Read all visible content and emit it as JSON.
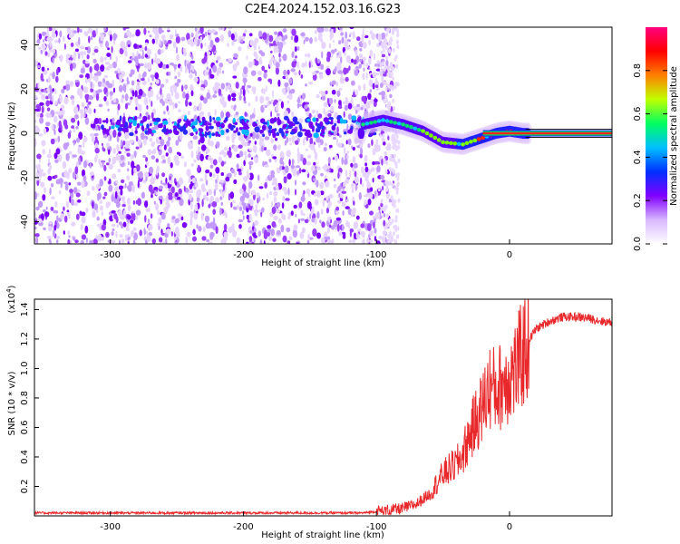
{
  "title": "C2E4.2024.152.03.16.G23",
  "chart_data": [
    {
      "type": "heatmap",
      "xlabel": "Height of straight line (km)",
      "ylabel": "Frequency (Hz)",
      "xlim": [
        -357,
        77
      ],
      "ylim": [
        -50,
        48
      ],
      "xticks": [
        -300,
        -200,
        -100,
        0
      ],
      "yticks": [
        -40,
        -20,
        0,
        20,
        40
      ],
      "colorbar": {
        "label": "Normalized spectral amplitude",
        "range": [
          0,
          1
        ],
        "ticks": [
          0.0,
          0.2,
          0.4,
          0.6,
          0.8
        ],
        "colormap": [
          "#ffffff",
          "#d8b8ff",
          "#8000ff",
          "#0030ff",
          "#00c0ff",
          "#00ff60",
          "#c0ff00",
          "#ff8000",
          "#ff0000",
          "#ff0080"
        ]
      },
      "ridge": {
        "description_points_x": [
          -110,
          -95,
          -80,
          -65,
          -50,
          -35,
          -20,
          -10,
          0,
          10,
          77
        ],
        "frequency_hz": [
          4,
          6,
          4,
          1,
          -4,
          -5,
          -2,
          0,
          1,
          0,
          0
        ]
      }
    },
    {
      "type": "line",
      "xlabel": "Height of straight line (km)",
      "ylabel": "SNR (10 * v/v)",
      "y_multiplier": "(x10",
      "y_multiplier_exp": "4",
      "xlim": [
        -357,
        77
      ],
      "ylim": [
        0,
        1.47
      ],
      "xticks": [
        -300,
        -200,
        -100,
        0
      ],
      "yticks": [
        0.2,
        0.4,
        0.6,
        0.8,
        1.0,
        1.2,
        1.4
      ],
      "series": [
        {
          "color": "#e8282a",
          "x": [
            -357,
            -300,
            -200,
            -110,
            -100,
            -80,
            -70,
            -60,
            -55,
            -50,
            -45,
            -40,
            -35,
            -30,
            -25,
            -20,
            -15,
            -10,
            -5,
            0,
            5,
            10,
            15,
            20,
            30,
            40,
            50,
            60,
            70,
            77
          ],
          "values": [
            0.02,
            0.02,
            0.02,
            0.02,
            0.03,
            0.05,
            0.08,
            0.15,
            0.22,
            0.28,
            0.32,
            0.35,
            0.42,
            0.55,
            0.65,
            0.75,
            0.88,
            0.85,
            0.9,
            0.95,
            1.0,
            1.1,
            1.2,
            1.27,
            1.32,
            1.35,
            1.35,
            1.34,
            1.32,
            1.31
          ]
        }
      ]
    }
  ]
}
